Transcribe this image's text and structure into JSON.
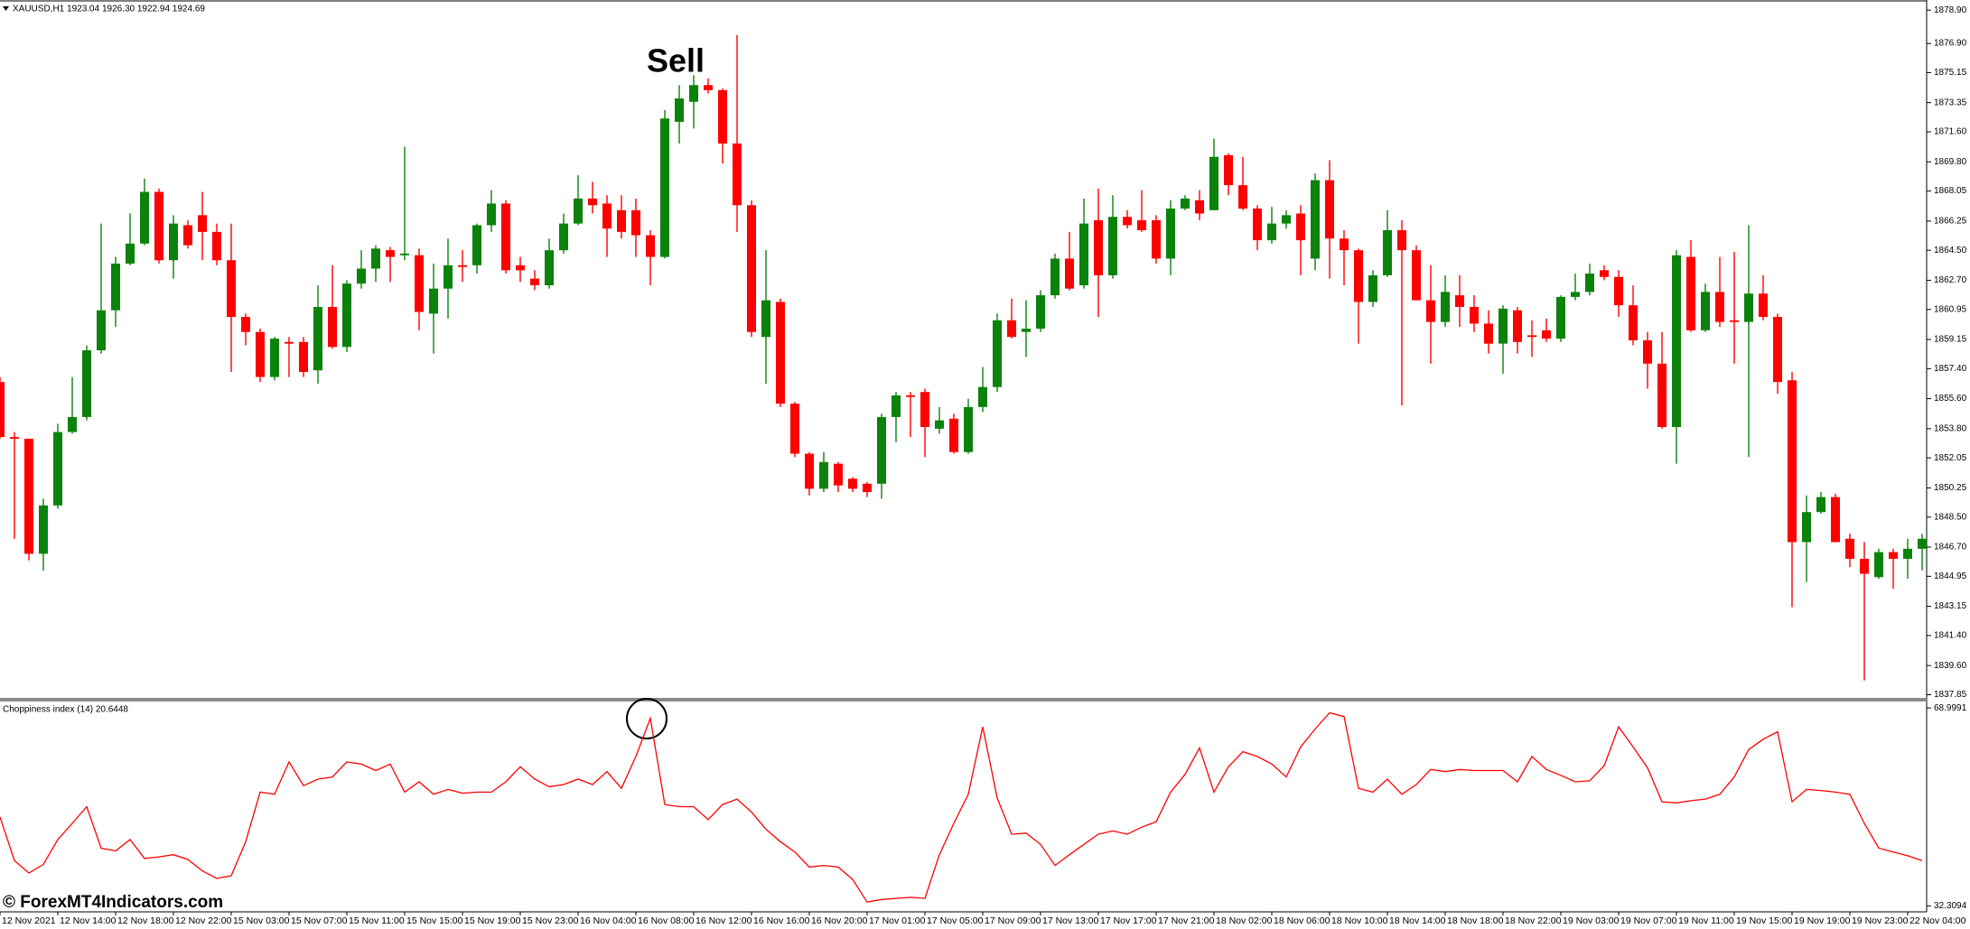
{
  "chart_data": [
    {
      "type": "candlestick",
      "title": "XAUUSD,H1 1923.04 1926.30 1922.94 1924.69",
      "annotation": "Sell",
      "categories": [
        "12 Nov 2021",
        null,
        null,
        null,
        "12 Nov 14:00",
        null,
        null,
        null,
        "12 Nov 18:00",
        null,
        null,
        null,
        "12 Nov 22:00",
        null,
        null,
        null,
        "15 Nov 03:00",
        null,
        null,
        null,
        "15 Nov 07:00",
        null,
        null,
        null,
        "15 Nov 11:00",
        null,
        null,
        null,
        "15 Nov 15:00",
        null,
        null,
        null,
        "15 Nov 19:00",
        null,
        null,
        null,
        "15 Nov 23:00",
        null,
        null,
        null,
        "16 Nov 04:00",
        null,
        null,
        null,
        "16 Nov 08:00",
        null,
        null,
        null,
        "16 Nov 12:00",
        null,
        null,
        null,
        "16 Nov 16:00",
        null,
        null,
        null,
        "16 Nov 20:00",
        null,
        null,
        null,
        "17 Nov 01:00",
        null,
        null,
        null,
        "17 Nov 05:00",
        null,
        null,
        null,
        "17 Nov 09:00",
        null,
        null,
        null,
        "17 Nov 13:00",
        null,
        null,
        null,
        "17 Nov 17:00",
        null,
        null,
        null,
        "17 Nov 21:00",
        null,
        null,
        null,
        "18 Nov 02:00",
        null,
        null,
        null,
        "18 Nov 06:00",
        null,
        null,
        null,
        "18 Nov 10:00",
        null,
        null,
        null,
        "18 Nov 14:00",
        null,
        null,
        null,
        "18 Nov 18:00",
        null,
        null,
        null,
        "18 Nov 22:00",
        null,
        null,
        null,
        "19 Nov 03:00",
        null,
        null,
        null,
        "19 Nov 07:00",
        null,
        null,
        null,
        "19 Nov 11:00",
        null,
        null,
        null,
        "19 Nov 15:00",
        null,
        null,
        null,
        "19 Nov 19:00",
        null,
        null,
        null,
        "19 Nov 23:00",
        null,
        null,
        null,
        "22 Nov 04:00",
        null
      ],
      "open": [
        1856.6,
        1853.3,
        1853.2,
        1846.3,
        1849.2,
        1853.6,
        1854.5,
        1858.5,
        1860.9,
        1863.7,
        1864.9,
        1868.0,
        1863.9,
        1866.0,
        1866.6,
        1865.6,
        1863.9,
        1860.5,
        1859.6,
        1856.9,
        1859.0,
        1859.0,
        1857.3,
        1861.1,
        1858.7,
        1862.5,
        1863.4,
        1864.5,
        1864.2,
        1864.2,
        1860.7,
        1862.2,
        1863.6,
        1863.6,
        1866.0,
        1867.3,
        1863.6,
        1862.8,
        1862.4,
        1864.5,
        1866.1,
        1867.6,
        1867.3,
        1866.9,
        1866.9,
        1865.4,
        1864.1,
        1872.2,
        1873.4,
        1874.4,
        1874.1,
        1870.9,
        1867.2,
        1859.3,
        1861.4,
        1855.3,
        1852.3,
        1850.2,
        1851.7,
        1850.8,
        1850.5,
        1850.5,
        1854.5,
        1855.8,
        1856.0,
        1853.8,
        1854.4,
        1852.4,
        1855.1,
        1856.3,
        1860.3,
        1859.6,
        1859.8,
        1861.8,
        1864.0,
        1862.4,
        1866.3,
        1863.0,
        1866.5,
        1866.3,
        1866.3,
        1864.0,
        1867.0,
        1867.5,
        1866.9,
        1870.2,
        1868.4,
        1867.0,
        1865.1,
        1866.1,
        1866.7,
        1864.0,
        1868.7,
        1865.2,
        1864.5,
        1861.4,
        1863.0,
        1865.7,
        1864.5,
        1861.5,
        1860.2,
        1861.8,
        1861.1,
        1860.1,
        1858.9,
        1860.9,
        1859.4,
        1859.7,
        1859.2,
        1861.7,
        1862.0,
        1863.3,
        1862.9,
        1861.2,
        1859.1,
        1857.7,
        1853.9,
        1864.1,
        1859.7,
        1862.0,
        1860.3,
        1860.2,
        1861.9,
        1860.5,
        1856.7,
        1847.0,
        1848.8,
        1849.7,
        1847.2,
        1846.0,
        1844.9,
        1846.4,
        1846.0,
        1846.6
      ],
      "high": [
        1856.9,
        1853.6,
        1853.2,
        1849.6,
        1854.1,
        1856.9,
        1858.8,
        1866.1,
        1864.1,
        1866.7,
        1868.8,
        1868.2,
        1866.6,
        1866.3,
        1868.0,
        1866.1,
        1866.1,
        1860.7,
        1859.8,
        1859.3,
        1859.3,
        1859.3,
        1862.4,
        1863.6,
        1862.7,
        1864.5,
        1864.8,
        1864.7,
        1870.7,
        1864.6,
        1863.7,
        1865.2,
        1864.5,
        1866.1,
        1868.1,
        1867.5,
        1864.1,
        1863.3,
        1865.2,
        1866.7,
        1869.0,
        1868.6,
        1867.8,
        1867.8,
        1867.6,
        1865.7,
        1872.9,
        1874.4,
        1875.0,
        1874.8,
        1874.2,
        1877.4,
        1867.5,
        1864.5,
        1861.6,
        1855.4,
        1852.4,
        1852.4,
        1851.8,
        1850.9,
        1850.6,
        1854.7,
        1856.0,
        1856.0,
        1856.2,
        1855.1,
        1854.7,
        1855.6,
        1857.5,
        1860.7,
        1861.6,
        1861.5,
        1862.1,
        1864.3,
        1865.6,
        1867.6,
        1868.2,
        1867.8,
        1866.9,
        1868.1,
        1866.6,
        1867.5,
        1867.8,
        1868.1,
        1871.2,
        1870.3,
        1870.1,
        1867.2,
        1867.1,
        1866.9,
        1867.2,
        1869.1,
        1869.9,
        1865.7,
        1864.6,
        1863.3,
        1866.9,
        1866.3,
        1864.8,
        1863.6,
        1863.0,
        1863.0,
        1861.8,
        1860.9,
        1861.2,
        1861.1,
        1860.3,
        1860.4,
        1861.8,
        1863.1,
        1863.7,
        1863.6,
        1863.3,
        1862.4,
        1859.6,
        1859.6,
        1864.5,
        1865.1,
        1862.5,
        1864.1,
        1864.4,
        1866.0,
        1863.0,
        1860.7,
        1857.2,
        1849.8,
        1850.0,
        1849.9,
        1847.5,
        1847.0,
        1846.6,
        1846.6,
        1847.2,
        1847.5
      ],
      "low": [
        1853.2,
        1847.2,
        1845.9,
        1845.3,
        1849.0,
        1853.5,
        1854.3,
        1858.3,
        1859.9,
        1863.6,
        1864.8,
        1863.7,
        1862.8,
        1864.6,
        1863.9,
        1863.6,
        1857.2,
        1858.8,
        1856.6,
        1856.7,
        1856.9,
        1856.9,
        1856.5,
        1858.6,
        1858.4,
        1862.2,
        1862.6,
        1862.6,
        1863.9,
        1859.7,
        1858.3,
        1860.4,
        1862.6,
        1863.1,
        1865.6,
        1863.1,
        1862.6,
        1862.1,
        1862.2,
        1864.3,
        1866.0,
        1866.7,
        1864.1,
        1865.2,
        1864.1,
        1862.4,
        1864.0,
        1870.9,
        1871.8,
        1873.9,
        1869.7,
        1865.6,
        1859.3,
        1856.5,
        1855.1,
        1852.1,
        1849.8,
        1850.0,
        1850.0,
        1850.0,
        1849.7,
        1849.6,
        1853.0,
        1853.3,
        1852.1,
        1853.5,
        1852.3,
        1852.3,
        1854.8,
        1856.0,
        1859.2,
        1858.1,
        1859.6,
        1861.6,
        1862.1,
        1862.2,
        1860.5,
        1862.8,
        1865.8,
        1865.6,
        1863.7,
        1863.0,
        1866.9,
        1866.3,
        1866.9,
        1867.8,
        1866.9,
        1864.5,
        1864.9,
        1865.8,
        1863.0,
        1863.3,
        1862.8,
        1862.4,
        1858.9,
        1861.1,
        1862.9,
        1855.2,
        1861.5,
        1857.7,
        1859.9,
        1859.9,
        1859.6,
        1858.3,
        1857.1,
        1858.3,
        1858.1,
        1859.0,
        1859.0,
        1861.5,
        1861.8,
        1862.7,
        1860.5,
        1858.8,
        1856.2,
        1853.8,
        1851.7,
        1859.6,
        1859.6,
        1859.9,
        1857.7,
        1852.1,
        1860.3,
        1855.9,
        1843.1,
        1844.6,
        1848.7,
        1847.0,
        1845.5,
        1838.7,
        1844.8,
        1844.2,
        1844.8,
        1845.3
      ],
      "close": [
        1853.3,
        1853.2,
        1846.3,
        1849.2,
        1853.6,
        1854.5,
        1858.5,
        1860.9,
        1863.7,
        1864.9,
        1868.0,
        1863.9,
        1866.1,
        1864.8,
        1865.6,
        1863.9,
        1860.5,
        1859.6,
        1856.9,
        1859.2,
        1858.9,
        1857.2,
        1861.1,
        1858.7,
        1862.5,
        1863.4,
        1864.6,
        1864.1,
        1864.3,
        1860.8,
        1862.2,
        1863.6,
        1863.5,
        1866.0,
        1867.3,
        1863.3,
        1863.3,
        1862.4,
        1864.5,
        1866.1,
        1867.6,
        1867.2,
        1865.8,
        1865.6,
        1865.4,
        1864.1,
        1872.4,
        1873.6,
        1874.4,
        1874.1,
        1870.9,
        1867.2,
        1859.6,
        1861.5,
        1855.3,
        1852.3,
        1850.2,
        1851.8,
        1850.4,
        1850.2,
        1850.0,
        1854.5,
        1855.8,
        1855.7,
        1853.9,
        1854.3,
        1852.4,
        1855.1,
        1856.3,
        1860.3,
        1859.3,
        1859.8,
        1861.8,
        1864.0,
        1862.2,
        1866.1,
        1863.0,
        1866.5,
        1866.0,
        1865.7,
        1864.0,
        1867.0,
        1867.6,
        1866.7,
        1870.1,
        1868.4,
        1867.0,
        1865.1,
        1866.1,
        1866.6,
        1865.1,
        1868.7,
        1865.2,
        1864.5,
        1861.4,
        1863.0,
        1865.7,
        1864.5,
        1861.5,
        1860.2,
        1862.0,
        1861.1,
        1860.1,
        1858.9,
        1861.0,
        1859.0,
        1859.3,
        1859.2,
        1861.7,
        1862.0,
        1863.1,
        1862.9,
        1861.2,
        1859.1,
        1857.7,
        1853.9,
        1864.2,
        1859.7,
        1862.0,
        1860.2,
        1860.2,
        1861.9,
        1860.5,
        1856.6,
        1847.0,
        1848.8,
        1849.7,
        1847.0,
        1846.0,
        1845.1,
        1846.4,
        1846.0,
        1846.6,
        1847.2
      ],
      "up_color": "#0b820b",
      "down_color": "#ff0000",
      "grid": false,
      "ylim": [
        1837.66,
        1879.45
      ],
      "yticks": [
        {
          "value": 1878.9,
          "label": "1878.90"
        },
        {
          "value": 1876.9,
          "label": "1876.90"
        },
        1875.15,
        1873.35,
        {
          "value": 1871.6,
          "label": "1871.60"
        },
        {
          "value": 1869.8,
          "label": "1869.80"
        },
        1868.05,
        1866.25,
        {
          "value": 1864.5,
          "label": "1864.50"
        },
        {
          "value": 1862.7,
          "label": "1862.70"
        },
        1860.95,
        1859.15,
        {
          "value": 1857.4,
          "label": "1857.40"
        },
        {
          "value": 1855.6,
          "label": "1855.60"
        },
        {
          "value": 1853.8,
          "label": "1853.80"
        },
        1852.05,
        1850.25,
        {
          "value": 1848.5,
          "label": "1848.50"
        },
        {
          "value": 1846.7,
          "label": "1846.70"
        },
        1844.95,
        1843.15,
        {
          "value": 1841.4,
          "label": "1841.40"
        },
        {
          "value": 1839.6,
          "label": "1839.60"
        },
        1837.85
      ]
    },
    {
      "type": "line",
      "title": "Choppiness index (14) 20.6448",
      "color": "#ff0000",
      "values": [
        48.8,
        40.7,
        38.4,
        40.0,
        44.6,
        47.6,
        50.7,
        43.0,
        42.5,
        44.6,
        41.1,
        41.4,
        41.8,
        40.9,
        38.8,
        37.4,
        37.9,
        44.2,
        53.4,
        53.0,
        59.0,
        54.6,
        55.8,
        56.2,
        59.0,
        58.6,
        57.4,
        58.6,
        53.4,
        55.3,
        53.0,
        53.9,
        53.2,
        53.4,
        53.4,
        55.3,
        58.1,
        55.8,
        54.4,
        54.8,
        55.8,
        54.8,
        57.2,
        54.1,
        60.0,
        67.1,
        51.1,
        50.7,
        50.7,
        48.3,
        51.1,
        52.1,
        49.7,
        46.5,
        44.2,
        42.3,
        39.5,
        39.8,
        39.5,
        37.2,
        33.0,
        33.5,
        33.7,
        33.9,
        33.7,
        41.8,
        47.6,
        53.0,
        65.5,
        52.3,
        45.6,
        45.8,
        43.7,
        39.8,
        41.8,
        43.7,
        45.6,
        46.2,
        45.6,
        46.9,
        47.9,
        53.4,
        56.7,
        61.6,
        53.4,
        58.1,
        60.9,
        60.0,
        58.6,
        56.2,
        61.8,
        65.1,
        68.1,
        67.4,
        54.1,
        53.4,
        55.8,
        53.0,
        54.8,
        57.6,
        57.2,
        57.6,
        57.4,
        57.4,
        57.4,
        55.3,
        60.0,
        57.6,
        56.5,
        55.3,
        55.5,
        58.3,
        65.5,
        61.8,
        57.9,
        51.6,
        51.4,
        51.8,
        52.1,
        53.0,
        56.2,
        61.3,
        63.2,
        64.6,
        51.6,
        53.9,
        53.7,
        53.4,
        53.0,
        47.6,
        43.0,
        42.3,
        41.6,
        40.7
      ],
      "ylim": [
        31.2,
        70.2
      ],
      "yticks": [
        68.9991,
        32.3094
      ]
    }
  ],
  "watermark": "© ForexMT4Indicators.com"
}
